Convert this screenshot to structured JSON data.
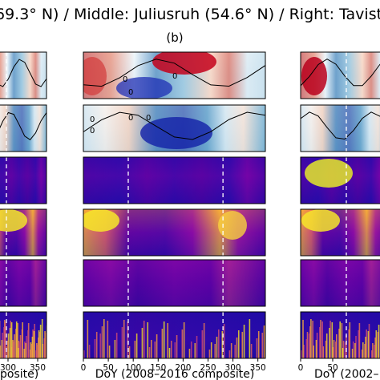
{
  "chart_data": {
    "type": "heatmap",
    "title": "69.3° N) / Middle: Juliusruh (54.6° N) / Right: Tavist",
    "panel_label": "(b)",
    "columns": [
      {
        "position": "left",
        "xlabel": "posite)",
        "xticks": [
          300,
          350
        ],
        "ticklabels": [
          "300",
          "350"
        ]
      },
      {
        "position": "middle",
        "xlabel": "DoY (2008–2016 composite)",
        "xticks": [
          0,
          50,
          100,
          150,
          200,
          250,
          300,
          350
        ],
        "ticklabels": [
          "0",
          "50",
          "100",
          "150",
          "200",
          "250",
          "300",
          "350"
        ],
        "xlim": [
          0,
          365
        ]
      },
      {
        "position": "right",
        "xlabel": "DoY (2002–",
        "xticks": [
          0,
          50
        ],
        "ticklabels": [
          "0",
          "50"
        ]
      }
    ],
    "rows": 6,
    "row_colormaps": [
      "bwr",
      "bwr",
      "plasma",
      "plasma",
      "plasma",
      "plasma"
    ],
    "contour_labels": [
      "0",
      "0",
      "0",
      "0",
      "0",
      "0",
      "0"
    ],
    "dashed_markers_doy": [
      90,
      280
    ],
    "colors": {
      "dashed_line": "#ffffff",
      "contour": "#000000"
    }
  }
}
